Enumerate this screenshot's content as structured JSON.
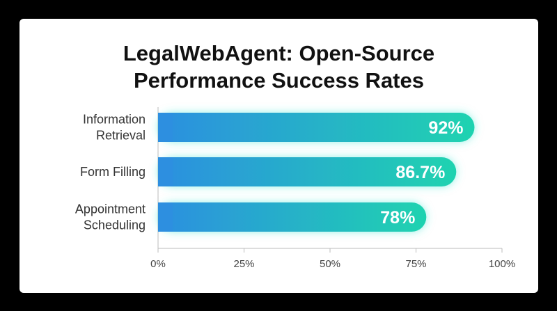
{
  "chart_data": {
    "type": "bar",
    "orientation": "horizontal",
    "title_lines": [
      "LegalWebAgent: Open-Source",
      "Performance Success Rates"
    ],
    "categories": [
      [
        "Information",
        "Retrieval"
      ],
      [
        "Form Filling"
      ],
      [
        "Appointment",
        "Scheduling"
      ]
    ],
    "values": [
      92,
      86.7,
      78
    ],
    "data_labels": [
      "92%",
      "86.7%",
      "78%"
    ],
    "xlim": [
      0,
      100
    ],
    "x_ticks": [
      0,
      25,
      50,
      75,
      100
    ],
    "x_tick_labels": [
      "0%",
      "25%",
      "50%",
      "75%",
      "100%"
    ],
    "xlabel": "",
    "ylabel": "",
    "grid": false,
    "legend": "none",
    "colors": {
      "bar_start": "#2d8fe0",
      "bar_end": "#1fd3b0",
      "glow": "#3ee6d2",
      "axis": "#bbbbbb",
      "background": "#ffffff",
      "frame": "#000000"
    }
  }
}
